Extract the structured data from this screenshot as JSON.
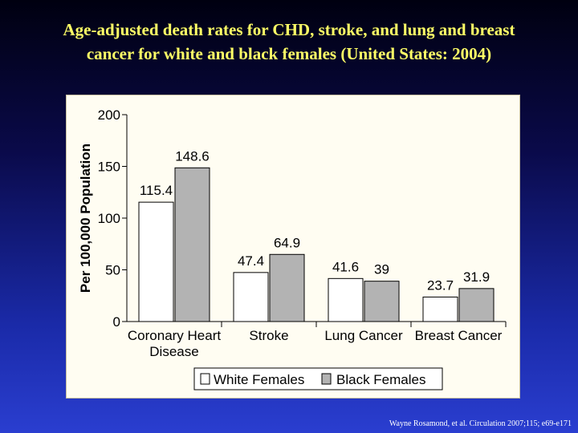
{
  "slide": {
    "title_line1": "Age-adjusted death rates for CHD, stroke, and lung and breast",
    "title_line2": "cancer for white and black females (United States: 2004)",
    "citation": "Wayne Rosamond, et al. Circulation  2007;115; e69-e171"
  },
  "colors": {
    "title": "#ffff66",
    "white_series_fill": "#ffffff",
    "black_series_fill": "#b3b3b3",
    "bar_stroke": "#000000"
  },
  "chart_data": {
    "type": "bar",
    "title": "",
    "xlabel": "",
    "ylabel": "Per 100,000 Population",
    "ylim": [
      0,
      200
    ],
    "yticks": [
      0,
      50,
      100,
      150,
      200
    ],
    "grid": false,
    "legend_position": "bottom",
    "categories": [
      [
        "Coronary Heart",
        "Disease"
      ],
      [
        "Stroke"
      ],
      [
        "Lung Cancer"
      ],
      [
        "Breast Cancer"
      ]
    ],
    "series": [
      {
        "name": "White Females",
        "values": [
          115.4,
          47.4,
          41.6,
          23.7
        ],
        "labels": [
          "115.4",
          "47.4",
          "41.6",
          "23.7"
        ],
        "color": "#ffffff"
      },
      {
        "name": "Black Females",
        "values": [
          148.6,
          64.9,
          39,
          31.9
        ],
        "labels": [
          "148.6",
          "64.9",
          "39",
          "31.9"
        ],
        "color": "#b3b3b3"
      }
    ]
  }
}
